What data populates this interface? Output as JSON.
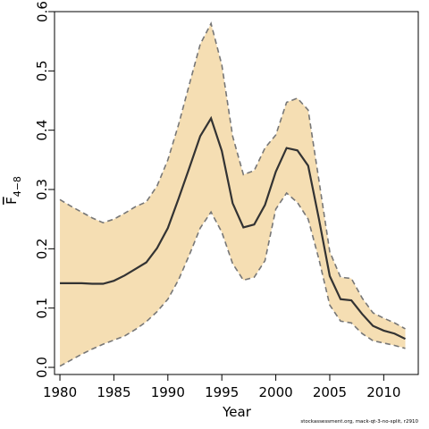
{
  "chart_data": {
    "type": "line",
    "xlabel": "Year",
    "ylabel_main": "F",
    "ylabel_sub": "4−8",
    "xlim": [
      1979.5,
      2013.2
    ],
    "ylim": [
      -0.012,
      0.6
    ],
    "xticks": [
      1980,
      1985,
      1990,
      1995,
      2000,
      2005,
      2010
    ],
    "yticks": [
      0.0,
      0.1,
      0.2,
      0.3,
      0.4,
      0.5,
      0.6
    ],
    "ytick_labels": [
      "0.0",
      "0.1",
      "0.2",
      "0.3",
      "0.4",
      "0.5",
      "0.6"
    ],
    "grid": false,
    "band_color": "#f5deb3",
    "line_color": "#333333",
    "bound_color": "#777777",
    "series": [
      {
        "role": "estimate",
        "x": [
          1980,
          1981,
          1982,
          1983,
          1984,
          1985,
          1986,
          1987,
          1988,
          1989,
          1990,
          1991,
          1992,
          1993,
          1994,
          1995,
          1996,
          1997,
          1998,
          1999,
          2000,
          2001,
          2002,
          2003,
          2004,
          2005,
          2006,
          2007,
          2008,
          2009,
          2010,
          2011,
          2012
        ],
        "y": [
          0.142,
          0.142,
          0.142,
          0.141,
          0.141,
          0.146,
          0.155,
          0.166,
          0.177,
          0.201,
          0.235,
          0.285,
          0.337,
          0.39,
          0.42,
          0.365,
          0.277,
          0.236,
          0.241,
          0.274,
          0.33,
          0.37,
          0.366,
          0.34,
          0.25,
          0.154,
          0.115,
          0.113,
          0.09,
          0.07,
          0.062,
          0.057,
          0.048
        ]
      },
      {
        "role": "upper",
        "x": [
          1980,
          1981,
          1982,
          1983,
          1984,
          1985,
          1986,
          1987,
          1988,
          1989,
          1990,
          1991,
          1992,
          1993,
          1994,
          1995,
          1996,
          1997,
          1998,
          1999,
          2000,
          2001,
          2002,
          2003,
          2004,
          2005,
          2006,
          2007,
          2008,
          2009,
          2010,
          2011,
          2012
        ],
        "y": [
          0.283,
          0.272,
          0.262,
          0.252,
          0.244,
          0.25,
          0.26,
          0.271,
          0.279,
          0.306,
          0.35,
          0.41,
          0.478,
          0.545,
          0.58,
          0.51,
          0.39,
          0.325,
          0.332,
          0.37,
          0.392,
          0.447,
          0.454,
          0.434,
          0.315,
          0.195,
          0.152,
          0.15,
          0.117,
          0.092,
          0.083,
          0.075,
          0.065
        ]
      },
      {
        "role": "lower",
        "x": [
          1980,
          1981,
          1982,
          1983,
          1984,
          1985,
          1986,
          1987,
          1988,
          1989,
          1990,
          1991,
          1992,
          1993,
          1994,
          1995,
          1996,
          1997,
          1998,
          1999,
          2000,
          2001,
          2002,
          2003,
          2004,
          2005,
          2006,
          2007,
          2008,
          2009,
          2010,
          2011,
          2012
        ],
        "y": [
          0.002,
          0.012,
          0.022,
          0.031,
          0.039,
          0.046,
          0.053,
          0.064,
          0.077,
          0.094,
          0.115,
          0.148,
          0.19,
          0.235,
          0.262,
          0.228,
          0.175,
          0.147,
          0.152,
          0.18,
          0.267,
          0.294,
          0.278,
          0.25,
          0.182,
          0.105,
          0.078,
          0.075,
          0.057,
          0.045,
          0.041,
          0.037,
          0.032
        ]
      }
    ]
  },
  "footer": "stockassessment.org, mack-qt-3-no-split, r2910"
}
